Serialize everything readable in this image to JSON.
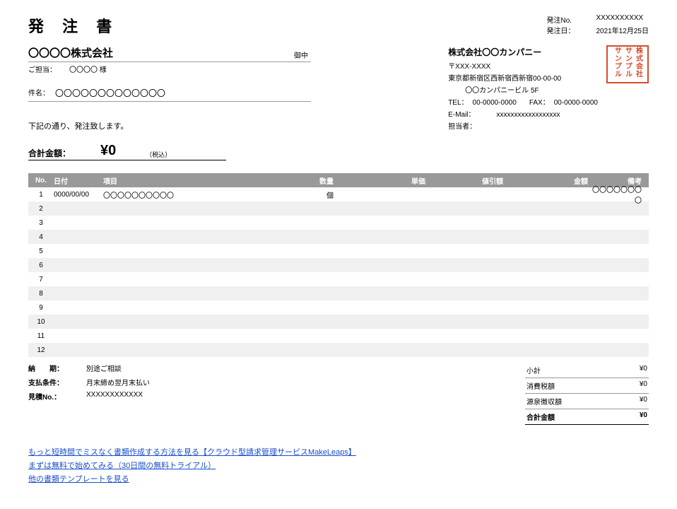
{
  "doc": {
    "title": "発 注 書",
    "noLabel": "発注No.",
    "noValue": "XXXXXXXXXX",
    "dateLabel": "発注日：",
    "dateValue": "2021年12月25日"
  },
  "recipient": {
    "name": "〇〇〇〇株式会社",
    "suffix": "御中",
    "contactLabel": "ご担当：",
    "contactName": "〇〇〇〇 様"
  },
  "subject": {
    "label": "件名：",
    "value": "〇〇〇〇〇〇〇〇〇〇〇〇〇"
  },
  "confirm": "下記の通り、発注致します。",
  "totalTop": {
    "label": "合計金額：",
    "amount": "¥0",
    "tax": "（税込）"
  },
  "sender": {
    "name": "株式会社〇〇カンパニー",
    "postal": "〒XXX-XXXX",
    "address": "東京都新宿区西新宿西新宿00-00-00",
    "building": "〇〇カンパニービル 5F",
    "telLabel": "TEL：",
    "tel": "00-0000-0000",
    "faxLabel": "FAX：",
    "fax": "00-0000-0000",
    "emailLabel": "E-Mail：",
    "email": "xxxxxxxxxxxxxxxxxx",
    "personLabel": "担当者：",
    "person": ""
  },
  "stamp": "株式会社\nサンプル\nサンプル",
  "columns": {
    "no": "No.",
    "date": "日付",
    "item": "項目",
    "qty": "数量",
    "unit": "単価",
    "discount": "値引額",
    "amount": "金額",
    "note": "備考"
  },
  "rows": [
    {
      "no": "1",
      "date": "0000/00/00",
      "item": "〇〇〇〇〇〇〇〇〇〇",
      "qty": "個",
      "unit": "",
      "discount": "",
      "amount": "",
      "note": "〇〇〇〇〇〇〇〇"
    },
    {
      "no": "2",
      "date": "",
      "item": "",
      "qty": "",
      "unit": "",
      "discount": "",
      "amount": "",
      "note": ""
    },
    {
      "no": "3",
      "date": "",
      "item": "",
      "qty": "",
      "unit": "",
      "discount": "",
      "amount": "",
      "note": ""
    },
    {
      "no": "4",
      "date": "",
      "item": "",
      "qty": "",
      "unit": "",
      "discount": "",
      "amount": "",
      "note": ""
    },
    {
      "no": "5",
      "date": "",
      "item": "",
      "qty": "",
      "unit": "",
      "discount": "",
      "amount": "",
      "note": ""
    },
    {
      "no": "6",
      "date": "",
      "item": "",
      "qty": "",
      "unit": "",
      "discount": "",
      "amount": "",
      "note": ""
    },
    {
      "no": "7",
      "date": "",
      "item": "",
      "qty": "",
      "unit": "",
      "discount": "",
      "amount": "",
      "note": ""
    },
    {
      "no": "8",
      "date": "",
      "item": "",
      "qty": "",
      "unit": "",
      "discount": "",
      "amount": "",
      "note": ""
    },
    {
      "no": "9",
      "date": "",
      "item": "",
      "qty": "",
      "unit": "",
      "discount": "",
      "amount": "",
      "note": ""
    },
    {
      "no": "10",
      "date": "",
      "item": "",
      "qty": "",
      "unit": "",
      "discount": "",
      "amount": "",
      "note": ""
    },
    {
      "no": "11",
      "date": "",
      "item": "",
      "qty": "",
      "unit": "",
      "discount": "",
      "amount": "",
      "note": ""
    },
    {
      "no": "12",
      "date": "",
      "item": "",
      "qty": "",
      "unit": "",
      "discount": "",
      "amount": "",
      "note": ""
    }
  ],
  "terms": {
    "deliveryLabel": "納　　期：",
    "delivery": "別途ご相談",
    "paymentLabel": "支払条件：",
    "payment": "月末締め翌月末払い",
    "quoteLabel": "見積No.：",
    "quote": "XXXXXXXXXXXX"
  },
  "summary": {
    "subtotalLabel": "小計",
    "subtotal": "¥0",
    "taxLabel": "消費税額",
    "tax": "¥0",
    "withholdLabel": "源泉徴収額",
    "withhold": "¥0",
    "totalLabel": "合計金額",
    "total": "¥0"
  },
  "links": {
    "l1": "もっと短時間でミスなく書類作成する方法を見る【クラウド型請求管理サービスMakeLeaps】",
    "l2": "まずは無料で始めてみる（30日間の無料トライアル）",
    "l3": "他の書類テンプレートを見る"
  },
  "colors": {
    "header_bg": "#999999",
    "header_fg": "#ffffff",
    "row_alt": "#f0f0f0",
    "stamp": "#d94a2b",
    "link": "#1a4ec9"
  }
}
